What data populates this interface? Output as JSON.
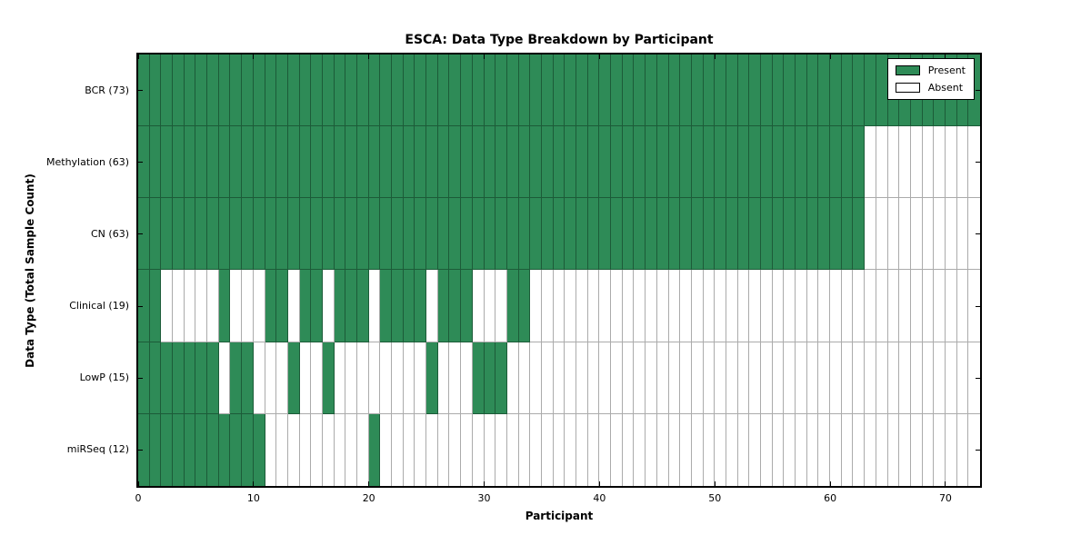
{
  "title": "ESCA: Data Type Breakdown by Participant",
  "axes": {
    "xlabel": "Participant",
    "ylabel": "Data Type (Total Sample Count)",
    "x_ticks": [
      0,
      10,
      20,
      30,
      40,
      50,
      60,
      70
    ],
    "x_range": [
      0,
      73
    ]
  },
  "legend": {
    "items": [
      {
        "label": "Present",
        "color": "#2E8B57"
      },
      {
        "label": "Absent",
        "color": "#FFFFFF"
      }
    ]
  },
  "colors": {
    "present_fill": "#2E8B57",
    "present_edge": "#1C5B38",
    "absent_fill": "#FFFFFF",
    "absent_edge": "#ABABAB"
  },
  "chart_data": {
    "type": "heatmap",
    "x_participants": 73,
    "value_legend": "1 = data type present for participant, 0 = absent",
    "rows": [
      {
        "label": "BCR (73)",
        "data_type": "BCR",
        "sample_count": 73,
        "present_ranges": [
          [
            0,
            72
          ]
        ]
      },
      {
        "label": "Methylation (63)",
        "data_type": "Methylation",
        "sample_count": 63,
        "present_ranges": [
          [
            0,
            62
          ]
        ]
      },
      {
        "label": "CN (63)",
        "data_type": "CN",
        "sample_count": 63,
        "present_ranges": [
          [
            0,
            62
          ]
        ]
      },
      {
        "label": "Clinical (19)",
        "data_type": "Clinical",
        "sample_count": 19,
        "present_ranges": [
          [
            0,
            1
          ],
          [
            7,
            7
          ],
          [
            11,
            12
          ],
          [
            14,
            15
          ],
          [
            17,
            19
          ],
          [
            21,
            24
          ],
          [
            26,
            28
          ],
          [
            32,
            33
          ]
        ]
      },
      {
        "label": "LowP (15)",
        "data_type": "LowP",
        "sample_count": 15,
        "present_ranges": [
          [
            0,
            6
          ],
          [
            8,
            9
          ],
          [
            13,
            13
          ],
          [
            16,
            16
          ],
          [
            25,
            25
          ],
          [
            29,
            31
          ]
        ]
      },
      {
        "label": "miRSeq (12)",
        "data_type": "miRSeq",
        "sample_count": 12,
        "present_ranges": [
          [
            0,
            10
          ],
          [
            20,
            20
          ]
        ]
      }
    ]
  }
}
